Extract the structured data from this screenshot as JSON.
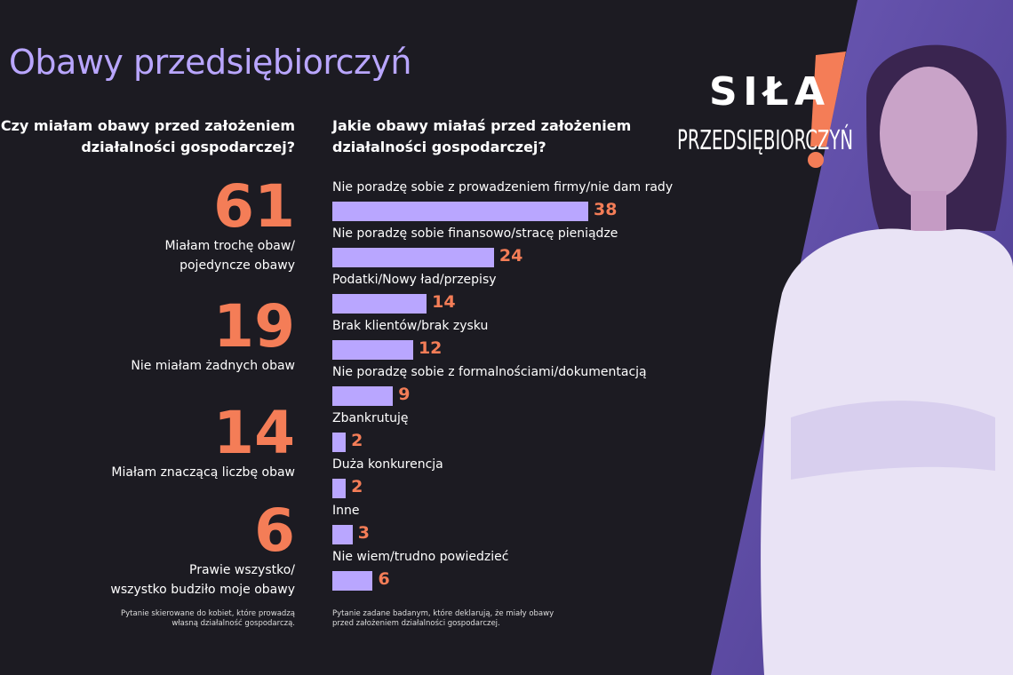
{
  "title": "Obawy przedsiębiorczyń",
  "left": {
    "question": "Czy miałam obawy przed założeniem\ndziałalności gospodarczej?",
    "stats": [
      {
        "value": "61",
        "label": "Miałam trochę obaw/\npojedyncze obawy"
      },
      {
        "value": "19",
        "label": "Nie miałam żadnych obaw"
      },
      {
        "value": "14",
        "label": "Miałam znaczącą liczbę obaw"
      },
      {
        "value": "6",
        "label": "Prawie wszystko/\nwszystko budziło moje obawy"
      }
    ],
    "footnote": "Pytanie skierowane do kobiet, które prowadzą\nwłasną działalność gospodarczą."
  },
  "chart_data": {
    "type": "bar",
    "orientation": "horizontal",
    "title": "Jakie obawy miałaś przed założeniem\ndziałalności gospodarczej?",
    "categories": [
      "Nie poradzę sobie z prowadzeniem firmy/nie dam rady",
      "Nie poradzę sobie finansowo/stracę pieniądze",
      "Podatki/Nowy ład/przepisy",
      "Brak klientów/brak zysku",
      "Nie poradzę sobie z formalnościami/dokumentacją",
      "Zbankrutuję",
      "Duża konkurencja",
      "Inne",
      "Nie wiem/trudno powiedzieć"
    ],
    "values": [
      38,
      24,
      14,
      12,
      9,
      2,
      2,
      3,
      6
    ],
    "color": "#b9a6ff",
    "label_color": "#f47d57",
    "footnote": "Pytanie zadane badanym, które deklarują, że miały obawy\nprzed założeniem działalności gospodarczej."
  },
  "logo": {
    "line1": "SIŁA",
    "line2": "PRZEDSIĘBIORCZYŃ"
  }
}
